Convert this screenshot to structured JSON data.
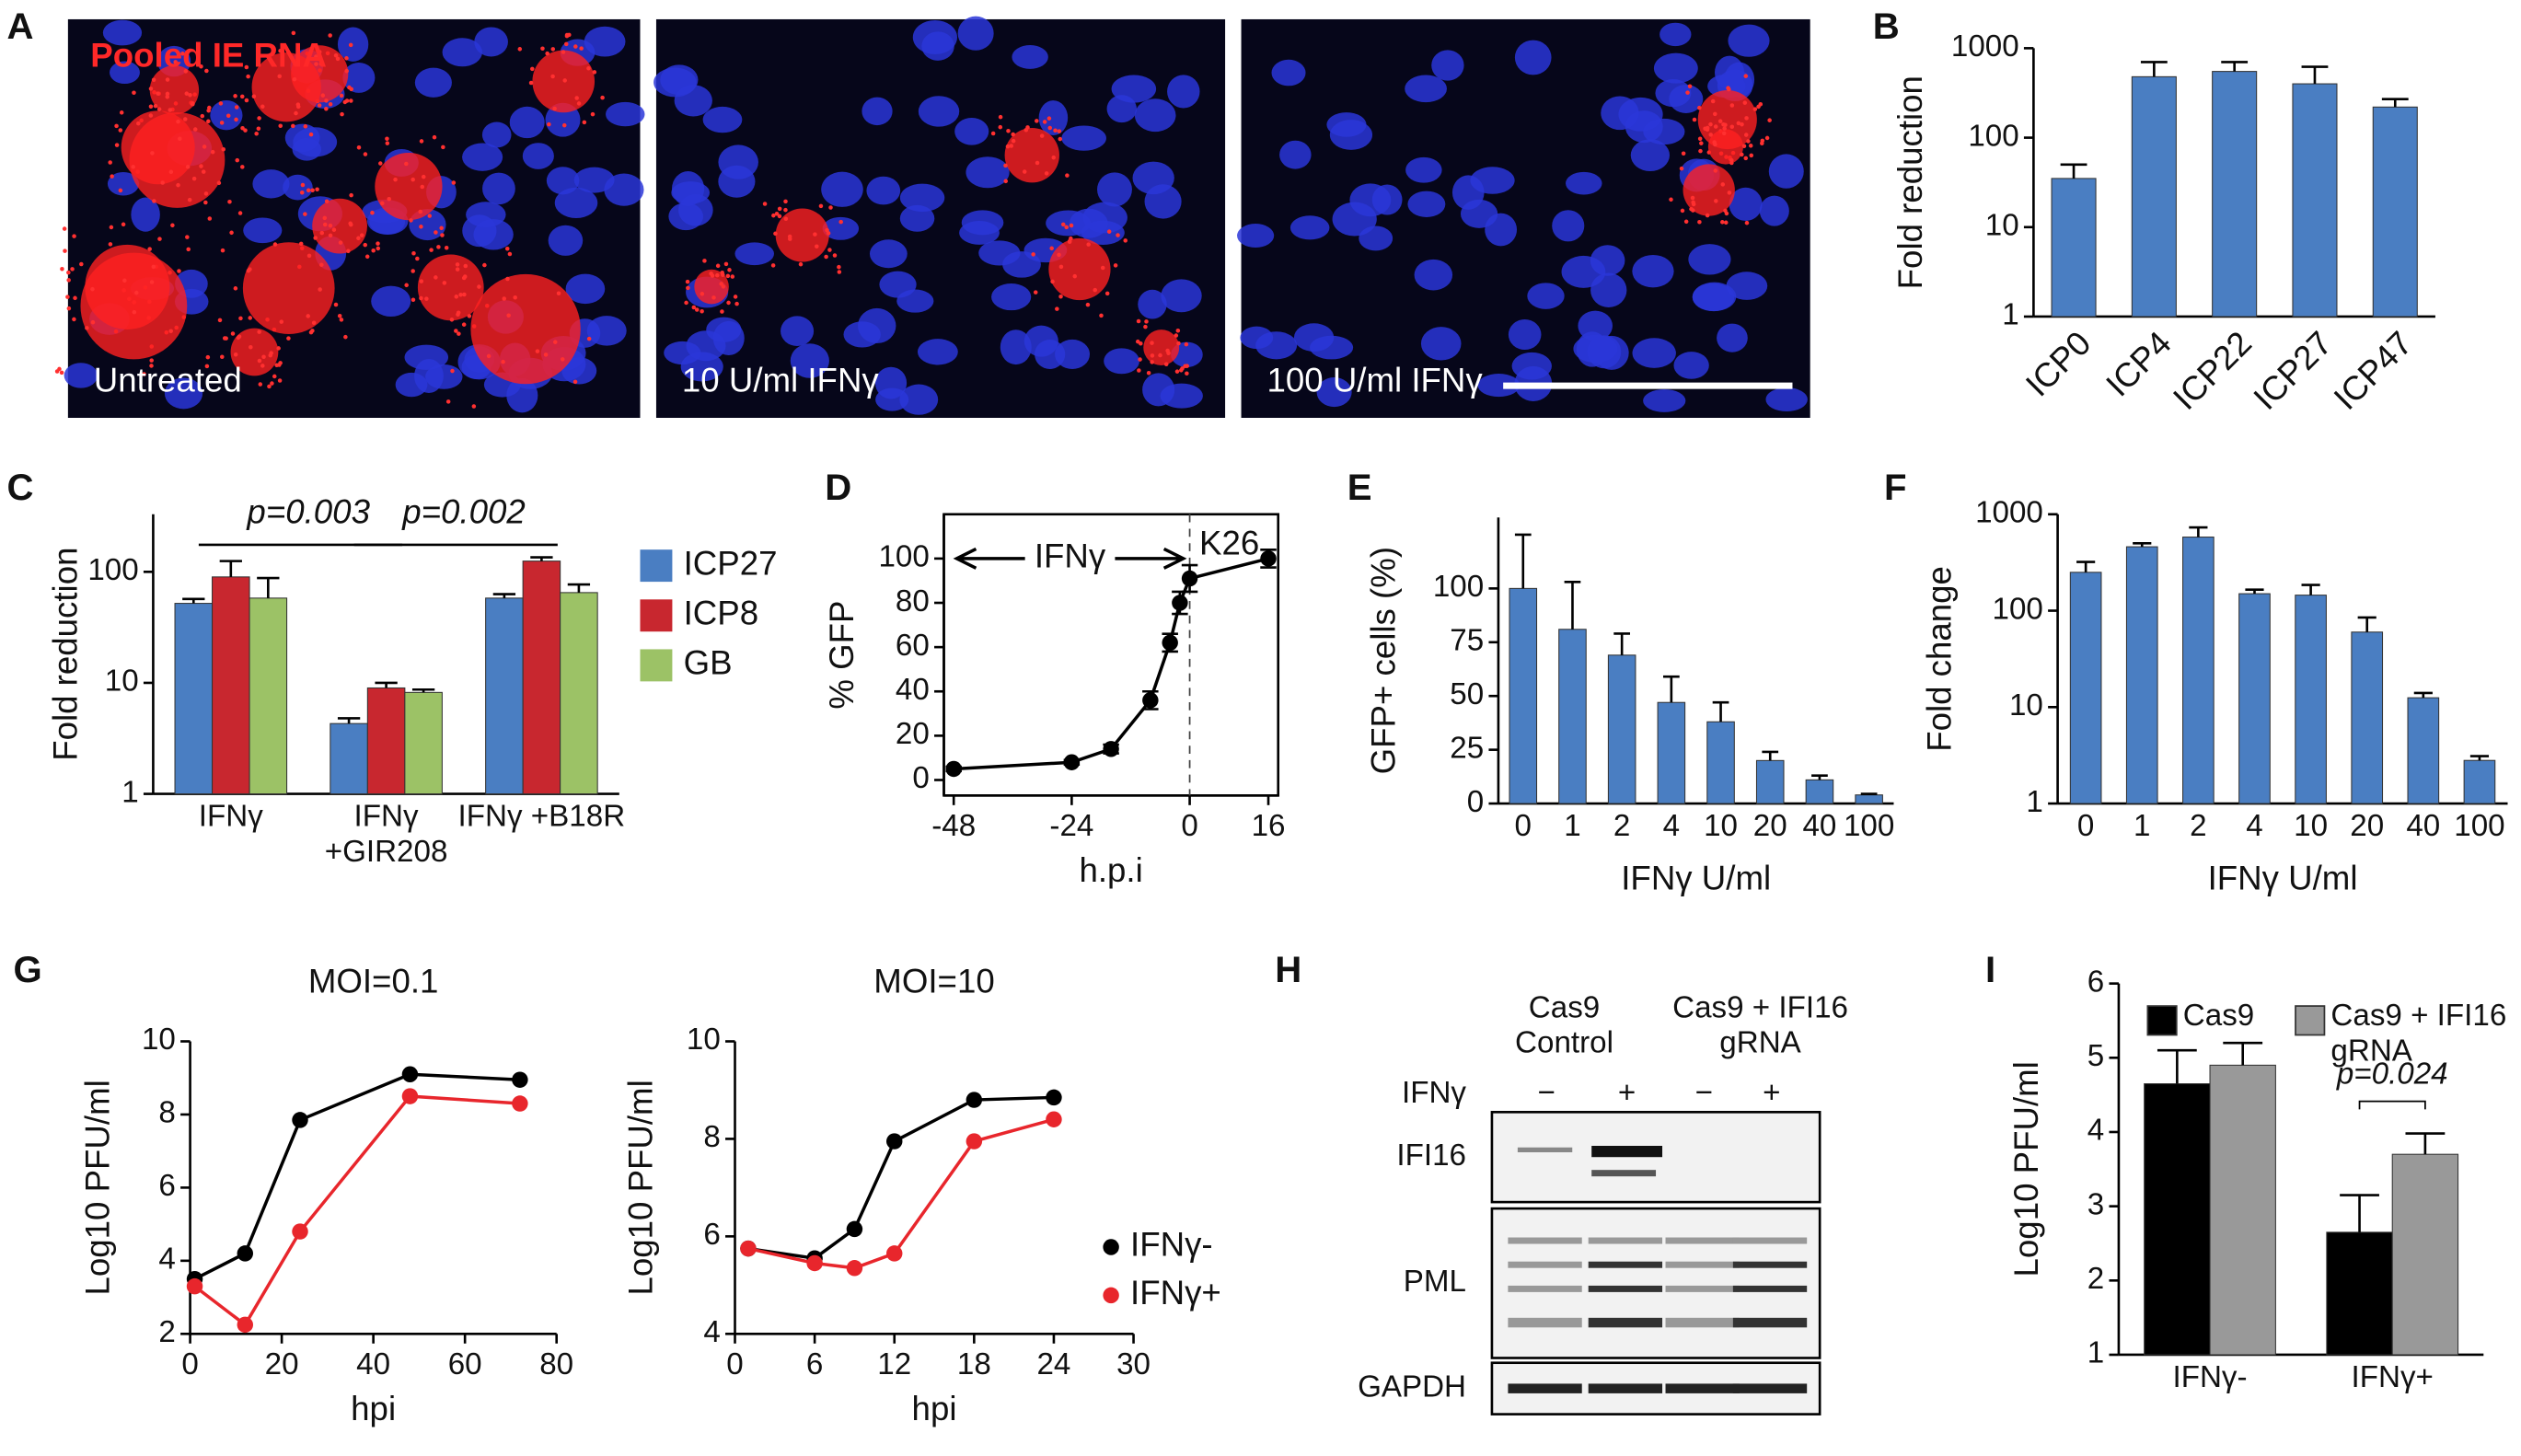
{
  "panel_a": {
    "panel": "A",
    "title": "Pooled IE RNA",
    "images": [
      "Untreated",
      "10 U/ml IFNγ",
      "100 U/ml IFNγ"
    ]
  },
  "panel_h": {
    "panel": "H",
    "columns": [
      "Cas9 Control",
      "Cas9 + IFI16 gRNA"
    ],
    "treatment": "IFNγ",
    "lanes": [
      "−",
      "+",
      "−",
      "+"
    ],
    "rows": [
      "IFI16",
      "PML",
      "GAPDH"
    ]
  },
  "chart_data": [
    {
      "panel": "B",
      "type": "bar",
      "ylabel": "Fold reduction",
      "categories": [
        "ICP0",
        "ICP4",
        "ICP22",
        "ICP27",
        "ICP47"
      ],
      "values": [
        35,
        480,
        550,
        400,
        220
      ],
      "errors": [
        15,
        220,
        150,
        220,
        50
      ],
      "color": "#4a7ec2",
      "log_scale": true,
      "ylim": [
        1,
        1000
      ],
      "yticks": [
        1,
        10,
        100,
        1000
      ],
      "rotate_labels": true
    },
    {
      "panel": "C",
      "type": "bar",
      "ylabel": "Fold reduction",
      "categories": [
        "IFNγ",
        "IFNγ +GIR208",
        "IFNγ +B18R"
      ],
      "series": [
        {
          "name": "ICP27",
          "color": "#4a7ec2",
          "values": [
            52,
            4.3,
            58
          ],
          "errors": [
            5,
            0.5,
            5
          ]
        },
        {
          "name": "ICP8",
          "color": "#c8272f",
          "values": [
            90,
            9,
            125
          ],
          "errors": [
            35,
            1,
            10
          ]
        },
        {
          "name": "GB",
          "color": "#9cc266",
          "values": [
            58,
            8.2,
            65
          ],
          "errors": [
            30,
            0.5,
            12
          ]
        }
      ],
      "log_scale": true,
      "ylim": [
        1,
        330
      ],
      "yticks": [
        1,
        10,
        100
      ],
      "annotations": [
        {
          "text": "p=0.003",
          "between": [
            0,
            1
          ]
        },
        {
          "text": "p=0.002",
          "between": [
            1,
            2
          ]
        }
      ],
      "legend": "right"
    },
    {
      "panel": "D",
      "type": "line",
      "xlabel": "h.p.i",
      "ylabel": "% GFP",
      "x": [
        -48,
        -24,
        -16,
        -8,
        -4,
        -2,
        0,
        16
      ],
      "values": [
        5,
        8,
        14,
        36,
        62,
        80,
        91,
        100
      ],
      "errors": [
        1,
        1,
        2,
        4,
        4,
        5,
        6,
        4
      ],
      "color": "#000000",
      "xlim": [
        -50,
        18
      ],
      "xticks": [
        -48,
        -24,
        0,
        16
      ],
      "ylim": [
        -7,
        120
      ],
      "yticks": [
        0,
        20,
        40,
        60,
        80,
        100
      ],
      "annotations": [
        "IFNγ",
        "K26"
      ],
      "vline": 0,
      "frame": true
    },
    {
      "panel": "E",
      "type": "bar",
      "xlabel": "IFNγ U/ml",
      "ylabel": "GFP+ cells (%)",
      "categories": [
        "0",
        "1",
        "2",
        "4",
        "10",
        "20",
        "40",
        "100"
      ],
      "values": [
        100,
        81,
        69,
        47,
        38,
        20,
        11,
        4
      ],
      "errors": [
        25,
        22,
        10,
        12,
        9,
        4,
        2,
        0.5
      ],
      "color": "#4a7ec2",
      "ylim": [
        0,
        133
      ],
      "yticks": [
        0,
        25,
        50,
        75,
        100
      ]
    },
    {
      "panel": "F",
      "type": "bar",
      "xlabel": "IFNγ U/ml",
      "ylabel": "Fold change",
      "categories": [
        "0",
        "1",
        "2",
        "4",
        "10",
        "20",
        "40",
        "100"
      ],
      "values": [
        250,
        460,
        580,
        150,
        145,
        60,
        12.5,
        2.8
      ],
      "errors": [
        70,
        40,
        150,
        15,
        40,
        25,
        1.5,
        0.3
      ],
      "color": "#4a7ec2",
      "log_scale": true,
      "ylim": [
        1,
        1000
      ],
      "yticks": [
        1,
        10,
        100,
        1000
      ]
    },
    {
      "panel": "G",
      "type": "line",
      "title": "MOI=0.1",
      "xlabel": "hpi",
      "ylabel": "Log10 PFU/ml",
      "x": [
        1,
        12,
        24,
        48,
        72
      ],
      "series": [
        {
          "color": "#000000",
          "values": [
            3.5,
            4.2,
            7.85,
            9.1,
            8.95
          ]
        },
        {
          "color": "#e8262c",
          "values": [
            3.3,
            2.25,
            4.8,
            8.5,
            8.3
          ]
        }
      ],
      "xlim": [
        0,
        80
      ],
      "xticks": [
        0,
        20,
        40,
        60,
        80
      ],
      "ylim": [
        2,
        10
      ],
      "yticks": [
        2,
        4,
        6,
        8,
        10
      ]
    },
    {
      "type": "line",
      "title": "MOI=10",
      "xlabel": "hpi",
      "ylabel": "Log10 PFU/ml",
      "x": [
        1,
        6,
        9,
        12,
        18,
        24
      ],
      "series": [
        {
          "name": "IFNγ-",
          "color": "#000000",
          "values": [
            5.75,
            5.55,
            6.15,
            7.95,
            8.8,
            8.85
          ]
        },
        {
          "name": "IFNγ+",
          "color": "#e8262c",
          "values": [
            5.75,
            5.45,
            5.35,
            5.65,
            7.95,
            8.4
          ]
        }
      ],
      "xlim": [
        0,
        30
      ],
      "xticks": [
        0,
        6,
        12,
        18,
        24,
        30
      ],
      "ylim": [
        4,
        10
      ],
      "yticks": [
        4,
        6,
        8,
        10
      ],
      "legend": "right"
    },
    {
      "panel": "I",
      "type": "bar",
      "ylabel": "Log10 PFU/ml",
      "categories": [
        "IFNγ-",
        "IFNγ+"
      ],
      "series": [
        {
          "name": "Cas9",
          "color": "#000000",
          "values": [
            4.65,
            2.65
          ],
          "errors": [
            0.45,
            0.5
          ]
        },
        {
          "name": "Cas9 + IFI16 gRNA",
          "color": "#999999",
          "values": [
            4.9,
            3.7
          ],
          "errors": [
            0.3,
            0.28
          ]
        }
      ],
      "ylim": [
        1,
        6
      ],
      "yticks": [
        1,
        2,
        3,
        4,
        5,
        6
      ],
      "annotations": [
        {
          "text": "p=0.024",
          "within": 1
        }
      ],
      "legend": "top"
    }
  ]
}
